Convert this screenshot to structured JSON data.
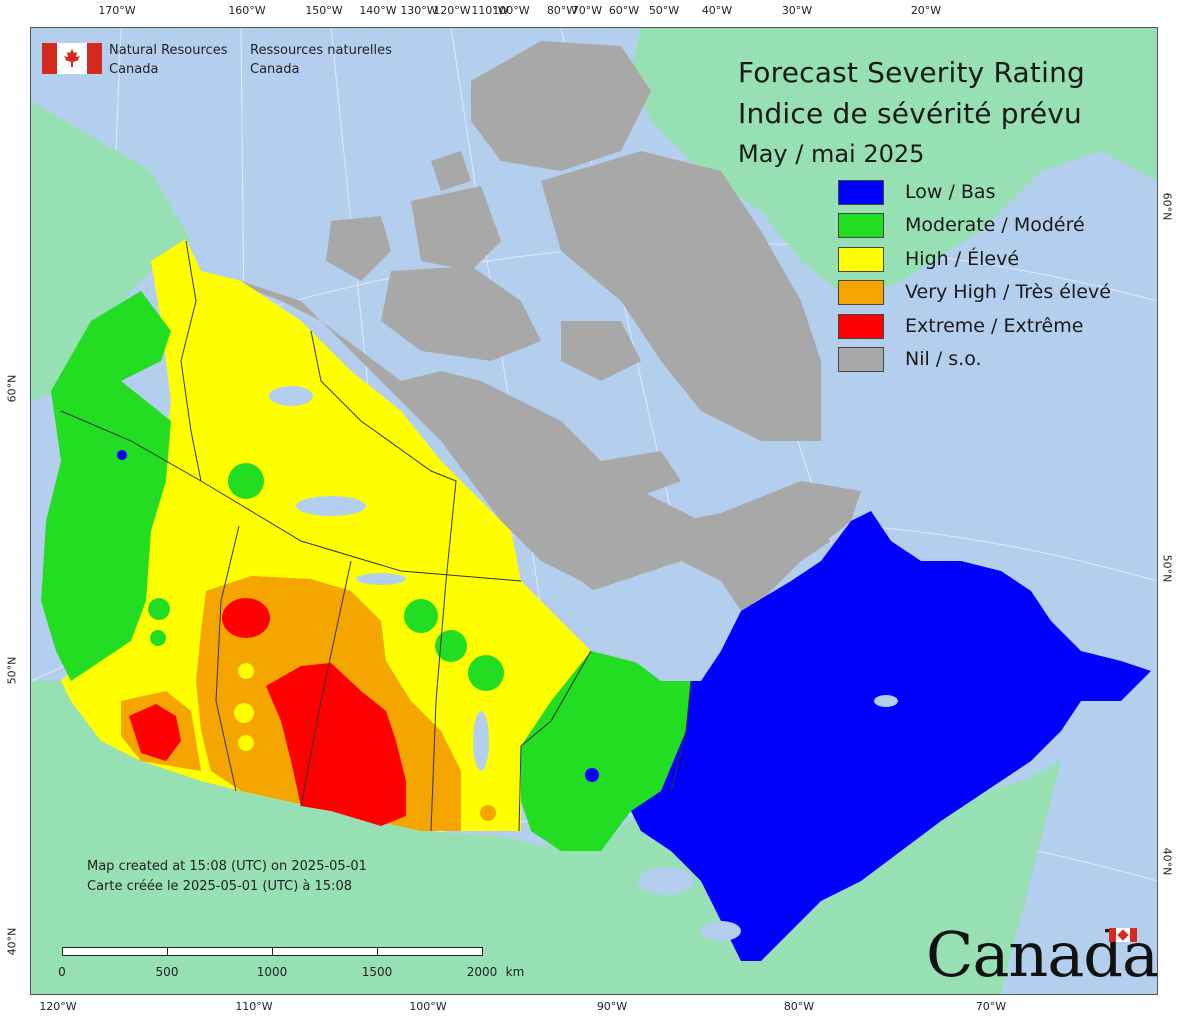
{
  "header": {
    "org_en_1": "Natural Resources",
    "org_en_2": "Canada",
    "org_fr_1": "Ressources naturelles",
    "org_fr_2": "Canada"
  },
  "title": {
    "line1": "Forecast Severity Rating",
    "line2": "Indice de sévérité prévu",
    "date": "May / mai 2025"
  },
  "legend": [
    {
      "label": "Low / Bas",
      "color": "#0000ff"
    },
    {
      "label": "Moderate / Modéré",
      "color": "#22dd22"
    },
    {
      "label": "High / Élevé",
      "color": "#ffff00"
    },
    {
      "label": "Very High / Très élevé",
      "color": "#f5a500"
    },
    {
      "label": "Extreme / Extrême",
      "color": "#ff0000"
    },
    {
      "label": "Nil / s.o.",
      "color": "#a8a8a8"
    }
  ],
  "colors": {
    "ocean": "#b4cfee",
    "foreign_land": "#97e0b4",
    "nil": "#a8a8a8",
    "low": "#0000ff",
    "moderate": "#22dd22",
    "high": "#ffff00",
    "very_high": "#f5a500",
    "extreme": "#ff0000",
    "border": "#333333"
  },
  "longitude_ticks_top": [
    "170°W",
    "160°W",
    "150°W",
    "140°W",
    "130°W",
    "120°W",
    "110°W",
    "100°W",
    "80°W",
    "70°W",
    "60°W",
    "50°W",
    "40°W",
    "30°W",
    "20°W"
  ],
  "longitude_ticks_bottom": [
    "120°W",
    "110°W",
    "100°W",
    "90°W",
    "80°W",
    "70°W"
  ],
  "latitude_ticks_left": [
    "60°N",
    "50°N",
    "40°N"
  ],
  "latitude_ticks_right": [
    "60°N",
    "50°N",
    "40°N"
  ],
  "notes": {
    "created_en": "Map created at 15:08 (UTC) on 2025-05-01",
    "created_fr": "Carte créée le 2025-05-01 (UTC) à 15:08"
  },
  "scale_bar": {
    "labels": [
      "0",
      "500",
      "1000",
      "1500",
      "2000"
    ],
    "unit": "km"
  },
  "wordmark": "Canada"
}
